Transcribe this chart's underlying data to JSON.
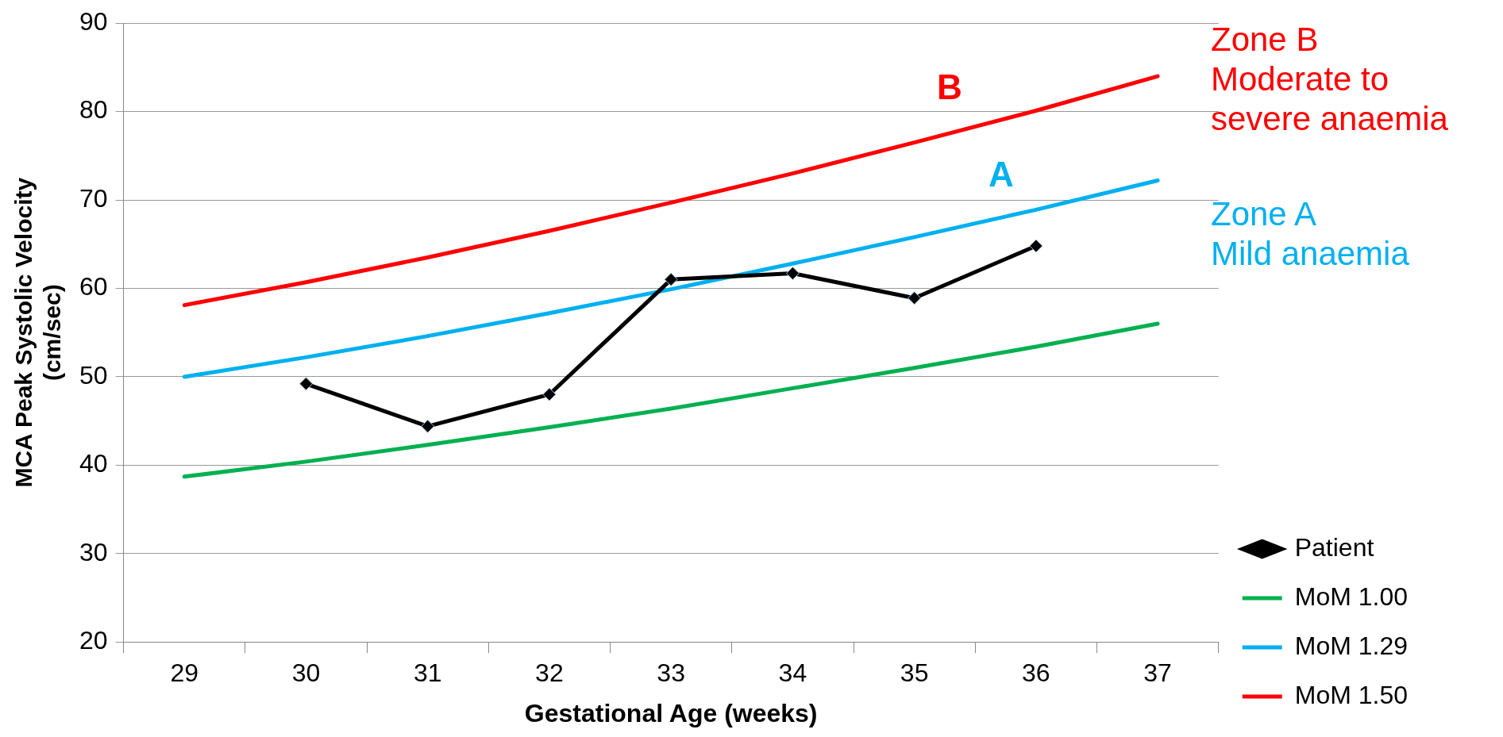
{
  "chart_data": {
    "type": "line",
    "xlabel": "Gestational Age (weeks)",
    "ylabel": "MCA Peak Systolic Velocity\n(cm/sec)",
    "categories": [
      "29",
      "30",
      "31",
      "32",
      "33",
      "34",
      "35",
      "36",
      "37"
    ],
    "series": [
      {
        "name": "Patient",
        "color": "#000000",
        "marker": "diamond",
        "values": [
          null,
          49.2,
          44.4,
          48,
          61,
          61.7,
          58.9,
          64.8,
          null
        ]
      },
      {
        "name": "MoM 1.00",
        "color": "#00b050",
        "values": [
          38.7,
          40.4,
          42.3,
          44.3,
          46.4,
          48.7,
          51.0,
          53.4,
          56.0
        ]
      },
      {
        "name": "MoM 1.29",
        "color": "#00b0f0",
        "values": [
          50,
          52.2,
          54.6,
          57.2,
          59.9,
          62.8,
          65.8,
          68.9,
          72.2
        ]
      },
      {
        "name": "MoM 1.50",
        "color": "#ff0000",
        "values": [
          58.1,
          60.7,
          63.5,
          66.5,
          69.7,
          73.0,
          76.5,
          80.1,
          84.0
        ]
      }
    ],
    "ylim": [
      20,
      90
    ],
    "yticks": [
      20,
      30,
      40,
      50,
      60,
      70,
      80,
      90
    ],
    "grid": "y",
    "legend": "right",
    "annotations": [
      "B",
      "A",
      "Zone B\nModerate to\nsevere anaemia",
      "Zone A\nMild anaemia"
    ]
  }
}
